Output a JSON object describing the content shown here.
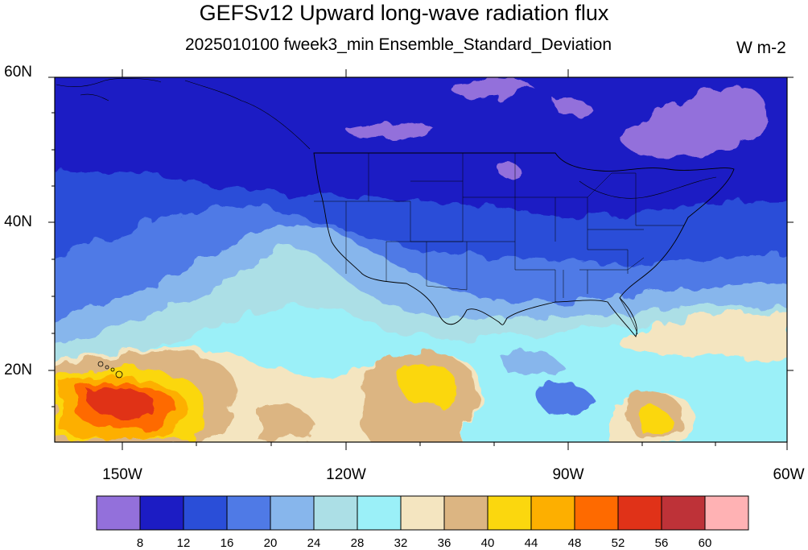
{
  "title": "GEFSv12 Upward long-wave radiation flux",
  "subtitle": "2025010100 fweek3_min Ensemble_Standard_Deviation",
  "units": "W m-2",
  "lat_labels": [
    "60N",
    "40N",
    "20N"
  ],
  "lon_labels": [
    "150W",
    "120W",
    "90W",
    "60W"
  ],
  "colorbar": {
    "colors": [
      "#9370db",
      "#1c1cc4",
      "#2a4ed8",
      "#4f7ae6",
      "#87b6ec",
      "#acdfe6",
      "#9bf0f8",
      "#f4e5c0",
      "#dcb582",
      "#fbd70e",
      "#fdaf00",
      "#fe6a00",
      "#e03218",
      "#be3238",
      "#ffb2b4"
    ],
    "labels": [
      "8",
      "12",
      "16",
      "20",
      "24",
      "28",
      "32",
      "36",
      "40",
      "44",
      "48",
      "52",
      "56",
      "60"
    ]
  },
  "map": {
    "lat_range": [
      "10N",
      "60N"
    ],
    "lon_range": [
      "160W",
      "60W"
    ]
  }
}
